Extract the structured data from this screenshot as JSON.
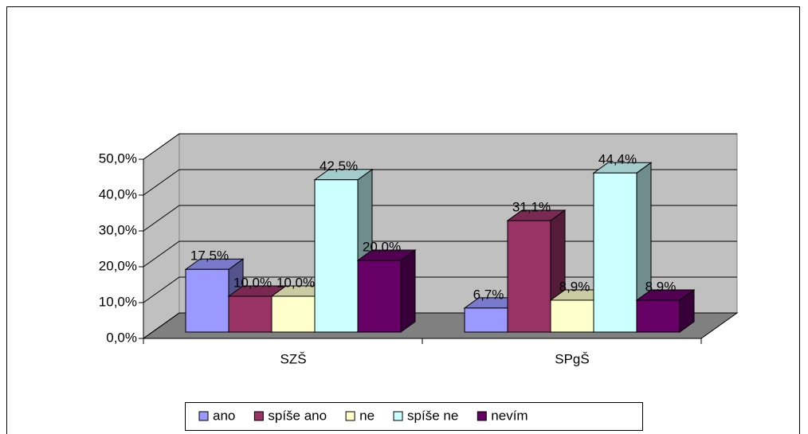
{
  "chart_data": {
    "type": "bar3d",
    "categories": [
      "SZŠ",
      "SPgŠ"
    ],
    "series": [
      {
        "name": "ano",
        "color": "#9999ff",
        "values": [
          17.5,
          6.7
        ],
        "value_labels": [
          "17,5%",
          "6,7%"
        ]
      },
      {
        "name": "spíše ano",
        "color": "#993366",
        "values": [
          10.0,
          31.1
        ],
        "value_labels": [
          "10,0%",
          "31,1%"
        ]
      },
      {
        "name": "ne",
        "color": "#ffffcc",
        "values": [
          10.0,
          8.9
        ],
        "value_labels": [
          "10,0%",
          "8,9%"
        ]
      },
      {
        "name": "spíše ne",
        "color": "#ccffff",
        "values": [
          42.5,
          44.4
        ],
        "value_labels": [
          "42,5%",
          "44,4%"
        ]
      },
      {
        "name": "nevím",
        "color": "#660066",
        "values": [
          20.0,
          8.9
        ],
        "value_labels": [
          "20,0%",
          "8,9%"
        ]
      }
    ],
    "ylim": [
      0,
      50
    ],
    "yticks": [
      {
        "value": 0,
        "label": "0,0%"
      },
      {
        "value": 10,
        "label": "10,0%"
      },
      {
        "value": 20,
        "label": "20,0%"
      },
      {
        "value": 30,
        "label": "30,0%"
      },
      {
        "value": 40,
        "label": "40,0%"
      },
      {
        "value": 50,
        "label": "50,0%"
      }
    ],
    "grid": true,
    "legend": "bottom"
  }
}
